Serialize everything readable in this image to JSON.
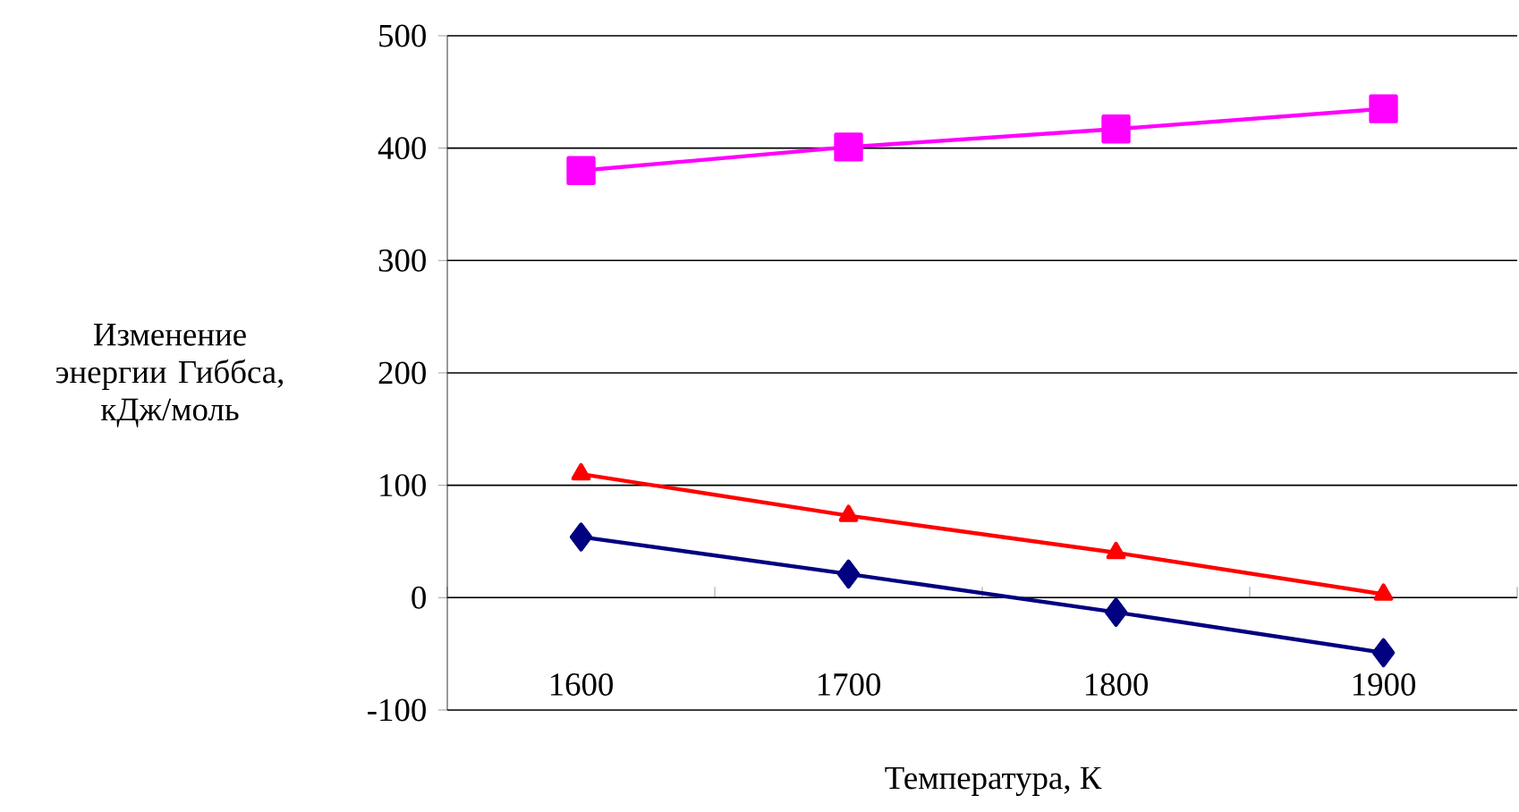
{
  "chart_data": {
    "type": "line",
    "xlabel": "Температура, К",
    "ylabel": "Изменение энергии Гиббса, кДж/моль",
    "categories": [
      "1600",
      "1700",
      "1800",
      "1900"
    ],
    "series": [
      {
        "color": "#000080",
        "marker": "diamond",
        "values": [
          54,
          21,
          -13,
          -49
        ]
      },
      {
        "color": "#ff00ff",
        "marker": "square",
        "values": [
          380,
          401,
          417,
          435
        ]
      },
      {
        "color": "#ff0000",
        "marker": "triangle",
        "values": [
          110,
          73,
          40,
          3
        ]
      }
    ],
    "ylim": [
      -100,
      500
    ],
    "yticks": [
      -100,
      0,
      100,
      200,
      300,
      400,
      500
    ],
    "grid": "y",
    "line_style": "solid"
  }
}
